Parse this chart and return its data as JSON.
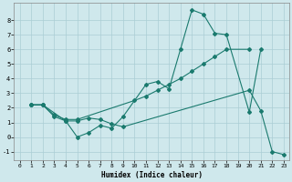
{
  "xlabel": "Humidex (Indice chaleur)",
  "bg_color": "#cfe8ec",
  "grid_color": "#aacdd4",
  "line_color": "#1a7a6e",
  "xlim": [
    -0.5,
    23.5
  ],
  "ylim": [
    -1.6,
    9.2
  ],
  "xticks": [
    0,
    1,
    2,
    3,
    4,
    5,
    6,
    7,
    8,
    9,
    10,
    11,
    12,
    13,
    14,
    15,
    16,
    17,
    18,
    19,
    20,
    21,
    22,
    23
  ],
  "yticks": [
    -1,
    0,
    1,
    2,
    3,
    4,
    5,
    6,
    7,
    8
  ],
  "series": [
    {
      "x": [
        1,
        2,
        4,
        5,
        6,
        7,
        8,
        9,
        11,
        12,
        13,
        14,
        15,
        16,
        17,
        18,
        20,
        21
      ],
      "y": [
        2.2,
        2.2,
        1.1,
        0.0,
        0.3,
        0.8,
        0.6,
        1.4,
        3.6,
        3.8,
        3.3,
        6.0,
        8.7,
        8.4,
        7.1,
        7.0,
        1.7,
        6.0
      ]
    },
    {
      "x": [
        1,
        2,
        3,
        4,
        5,
        10,
        11,
        12,
        13,
        14,
        15,
        16,
        17,
        18,
        20
      ],
      "y": [
        2.2,
        2.2,
        1.5,
        1.2,
        1.2,
        2.5,
        2.8,
        3.2,
        3.6,
        4.0,
        4.5,
        5.0,
        5.5,
        6.0,
        6.0
      ]
    },
    {
      "x": [
        1,
        2,
        3,
        4,
        5,
        6,
        7,
        8,
        9,
        20,
        21,
        22,
        23
      ],
      "y": [
        2.2,
        2.2,
        1.4,
        1.1,
        1.1,
        1.3,
        1.2,
        0.9,
        0.7,
        3.2,
        1.8,
        -1.0,
        -1.2
      ]
    }
  ]
}
